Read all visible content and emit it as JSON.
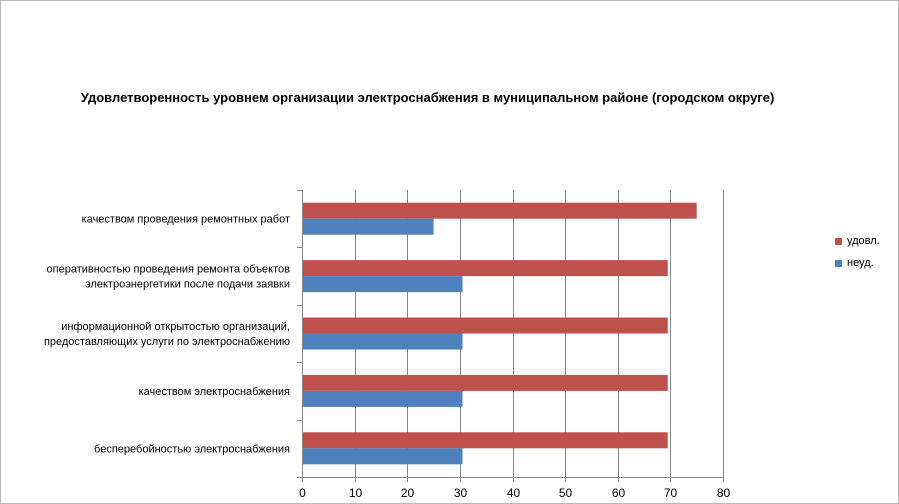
{
  "chart_data": {
    "type": "bar",
    "orientation": "horizontal",
    "title": "Удовлетворенность уровнем организации электроснабжения в муниципальном районе (городском округе)",
    "categories": [
      [
        "качеством  проведения  ремонтных  работ"
      ],
      [
        "оперативностью  проведения  ремонта  объектов",
        "электроэнергетики  после подачи  заявки"
      ],
      [
        "информационной  открытостью  организаций,",
        "предоставляющих  услуги  по электроснабжению"
      ],
      [
        "качеством  электроснабжения"
      ],
      [
        "бесперебойностью  электроснабжения"
      ]
    ],
    "series": [
      {
        "name": "удовл.",
        "color": "#c0504d",
        "values": [
          75,
          69.5,
          69.5,
          69.5,
          69.5
        ]
      },
      {
        "name": "неуд.",
        "color": "#4f81bd",
        "values": [
          25,
          30.5,
          30.5,
          30.5,
          30.5
        ]
      }
    ],
    "xlim": [
      0,
      80
    ],
    "xticks": [
      0,
      10,
      20,
      30,
      40,
      50,
      60,
      70,
      80
    ],
    "grid": true,
    "legend_position": "right",
    "legend": [
      {
        "name": "удовл.",
        "color": "#c0504d"
      },
      {
        "name": "неуд.",
        "color": "#4f81bd"
      }
    ],
    "grid_color": "#868686",
    "axis_color": "#868686"
  }
}
